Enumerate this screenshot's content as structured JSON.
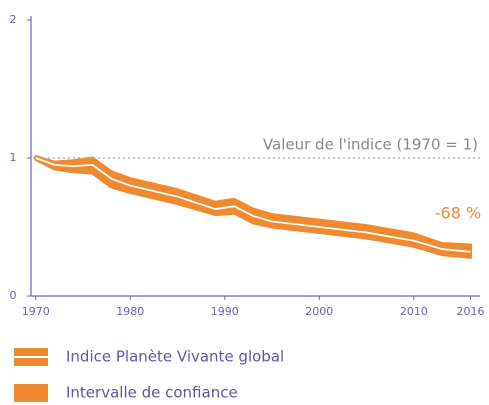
{
  "chart_data": {
    "type": "line",
    "x": [
      1970,
      1972,
      1974,
      1976,
      1978,
      1980,
      1985,
      1989,
      1991,
      1993,
      1995,
      2000,
      2005,
      2010,
      2013,
      2016
    ],
    "series": [
      {
        "name": "Indice Planète Vivante global",
        "color": "#ffffff",
        "values": [
          1,
          0.95,
          0.94,
          0.95,
          0.85,
          0.8,
          0.72,
          0.63,
          0.65,
          0.58,
          0.54,
          0.5,
          0.46,
          0.4,
          0.34,
          0.32
        ]
      }
    ],
    "band": {
      "name": "Intervalle de confiance",
      "color": "#f08a30",
      "lower": [
        0.99,
        0.92,
        0.9,
        0.89,
        0.79,
        0.75,
        0.67,
        0.59,
        0.6,
        0.53,
        0.5,
        0.46,
        0.42,
        0.36,
        0.3,
        0.28
      ],
      "upper": [
        1.01,
        0.97,
        0.98,
        1.0,
        0.9,
        0.85,
        0.77,
        0.68,
        0.7,
        0.63,
        0.59,
        0.55,
        0.51,
        0.45,
        0.38,
        0.37
      ]
    },
    "reference": {
      "value": 1,
      "label": "Valeur de l'indice (1970 = 1)"
    },
    "annotation": "-68 %",
    "xlim": [
      1969.5,
      2017
    ],
    "xticks": [
      1970,
      1980,
      1990,
      2000,
      2010,
      2016
    ],
    "ylim": [
      0,
      2
    ],
    "yticks": [
      0,
      1,
      2
    ]
  }
}
